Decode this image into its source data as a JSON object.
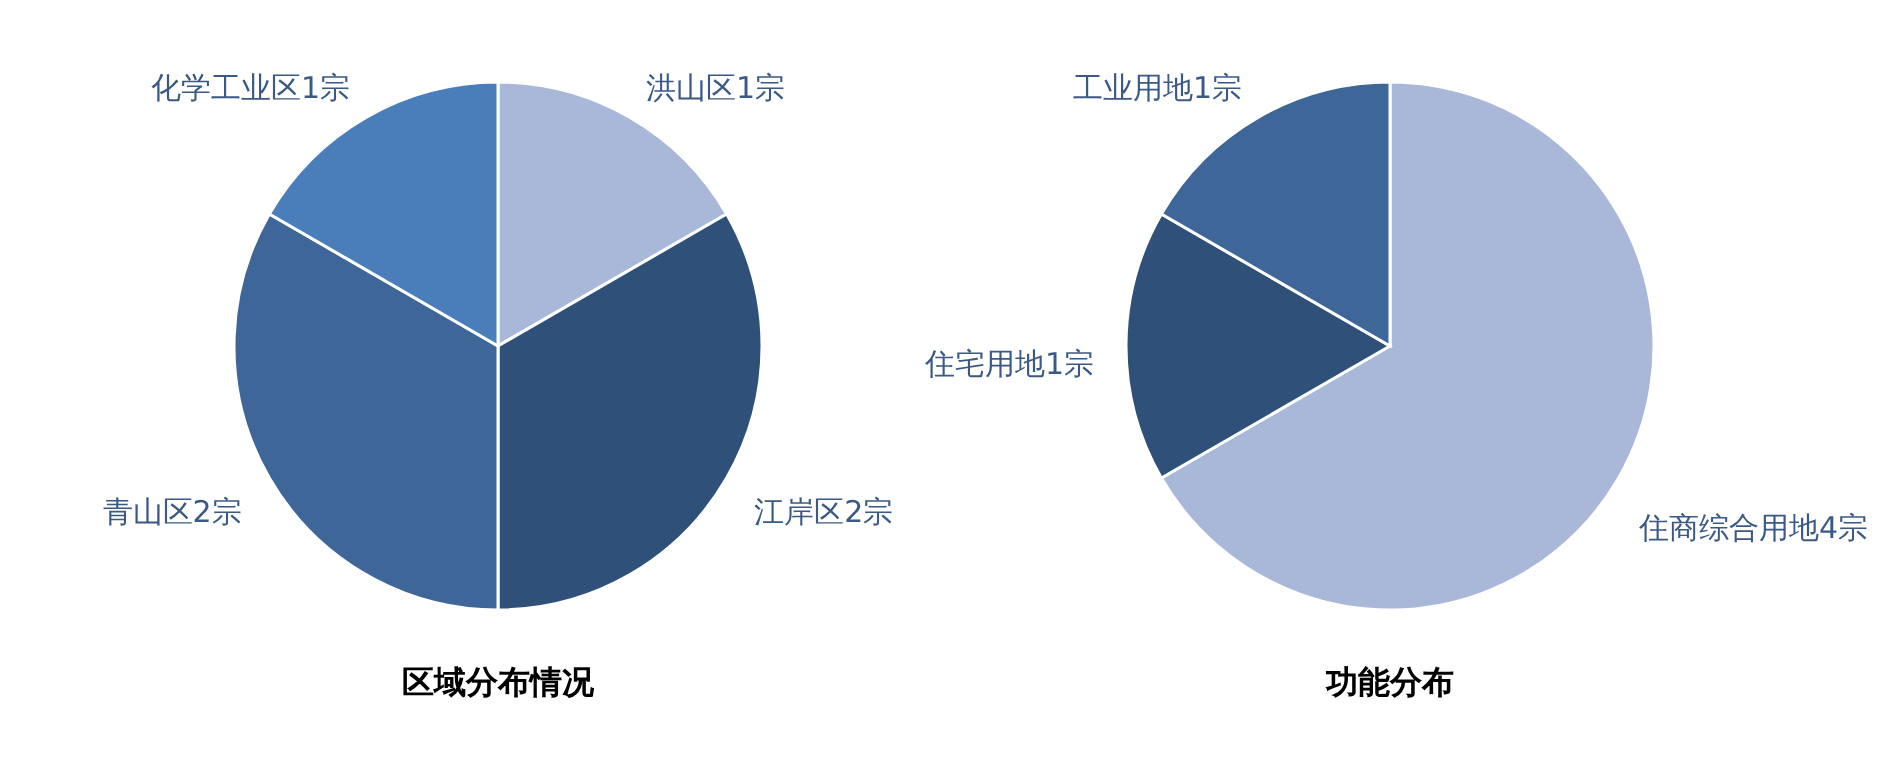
{
  "chart_data": [
    {
      "type": "pie",
      "title": "区域分布情况",
      "categories": [
        "洪山区1宗",
        "江岸区2宗",
        "青山区2宗",
        "化学工业区1宗"
      ],
      "values": [
        1,
        2,
        2,
        1
      ],
      "colors": [
        "#a9b8d8",
        "#2f5078",
        "#3e6699",
        "#4a7ebb"
      ]
    },
    {
      "type": "pie",
      "title": "功能分布",
      "categories": [
        "住商综合用地4宗",
        "住宅用地1宗",
        "工业用地1宗"
      ],
      "values": [
        4,
        1,
        1
      ],
      "colors": [
        "#a9b8d8",
        "#2f5078",
        "#3e6699"
      ]
    }
  ]
}
